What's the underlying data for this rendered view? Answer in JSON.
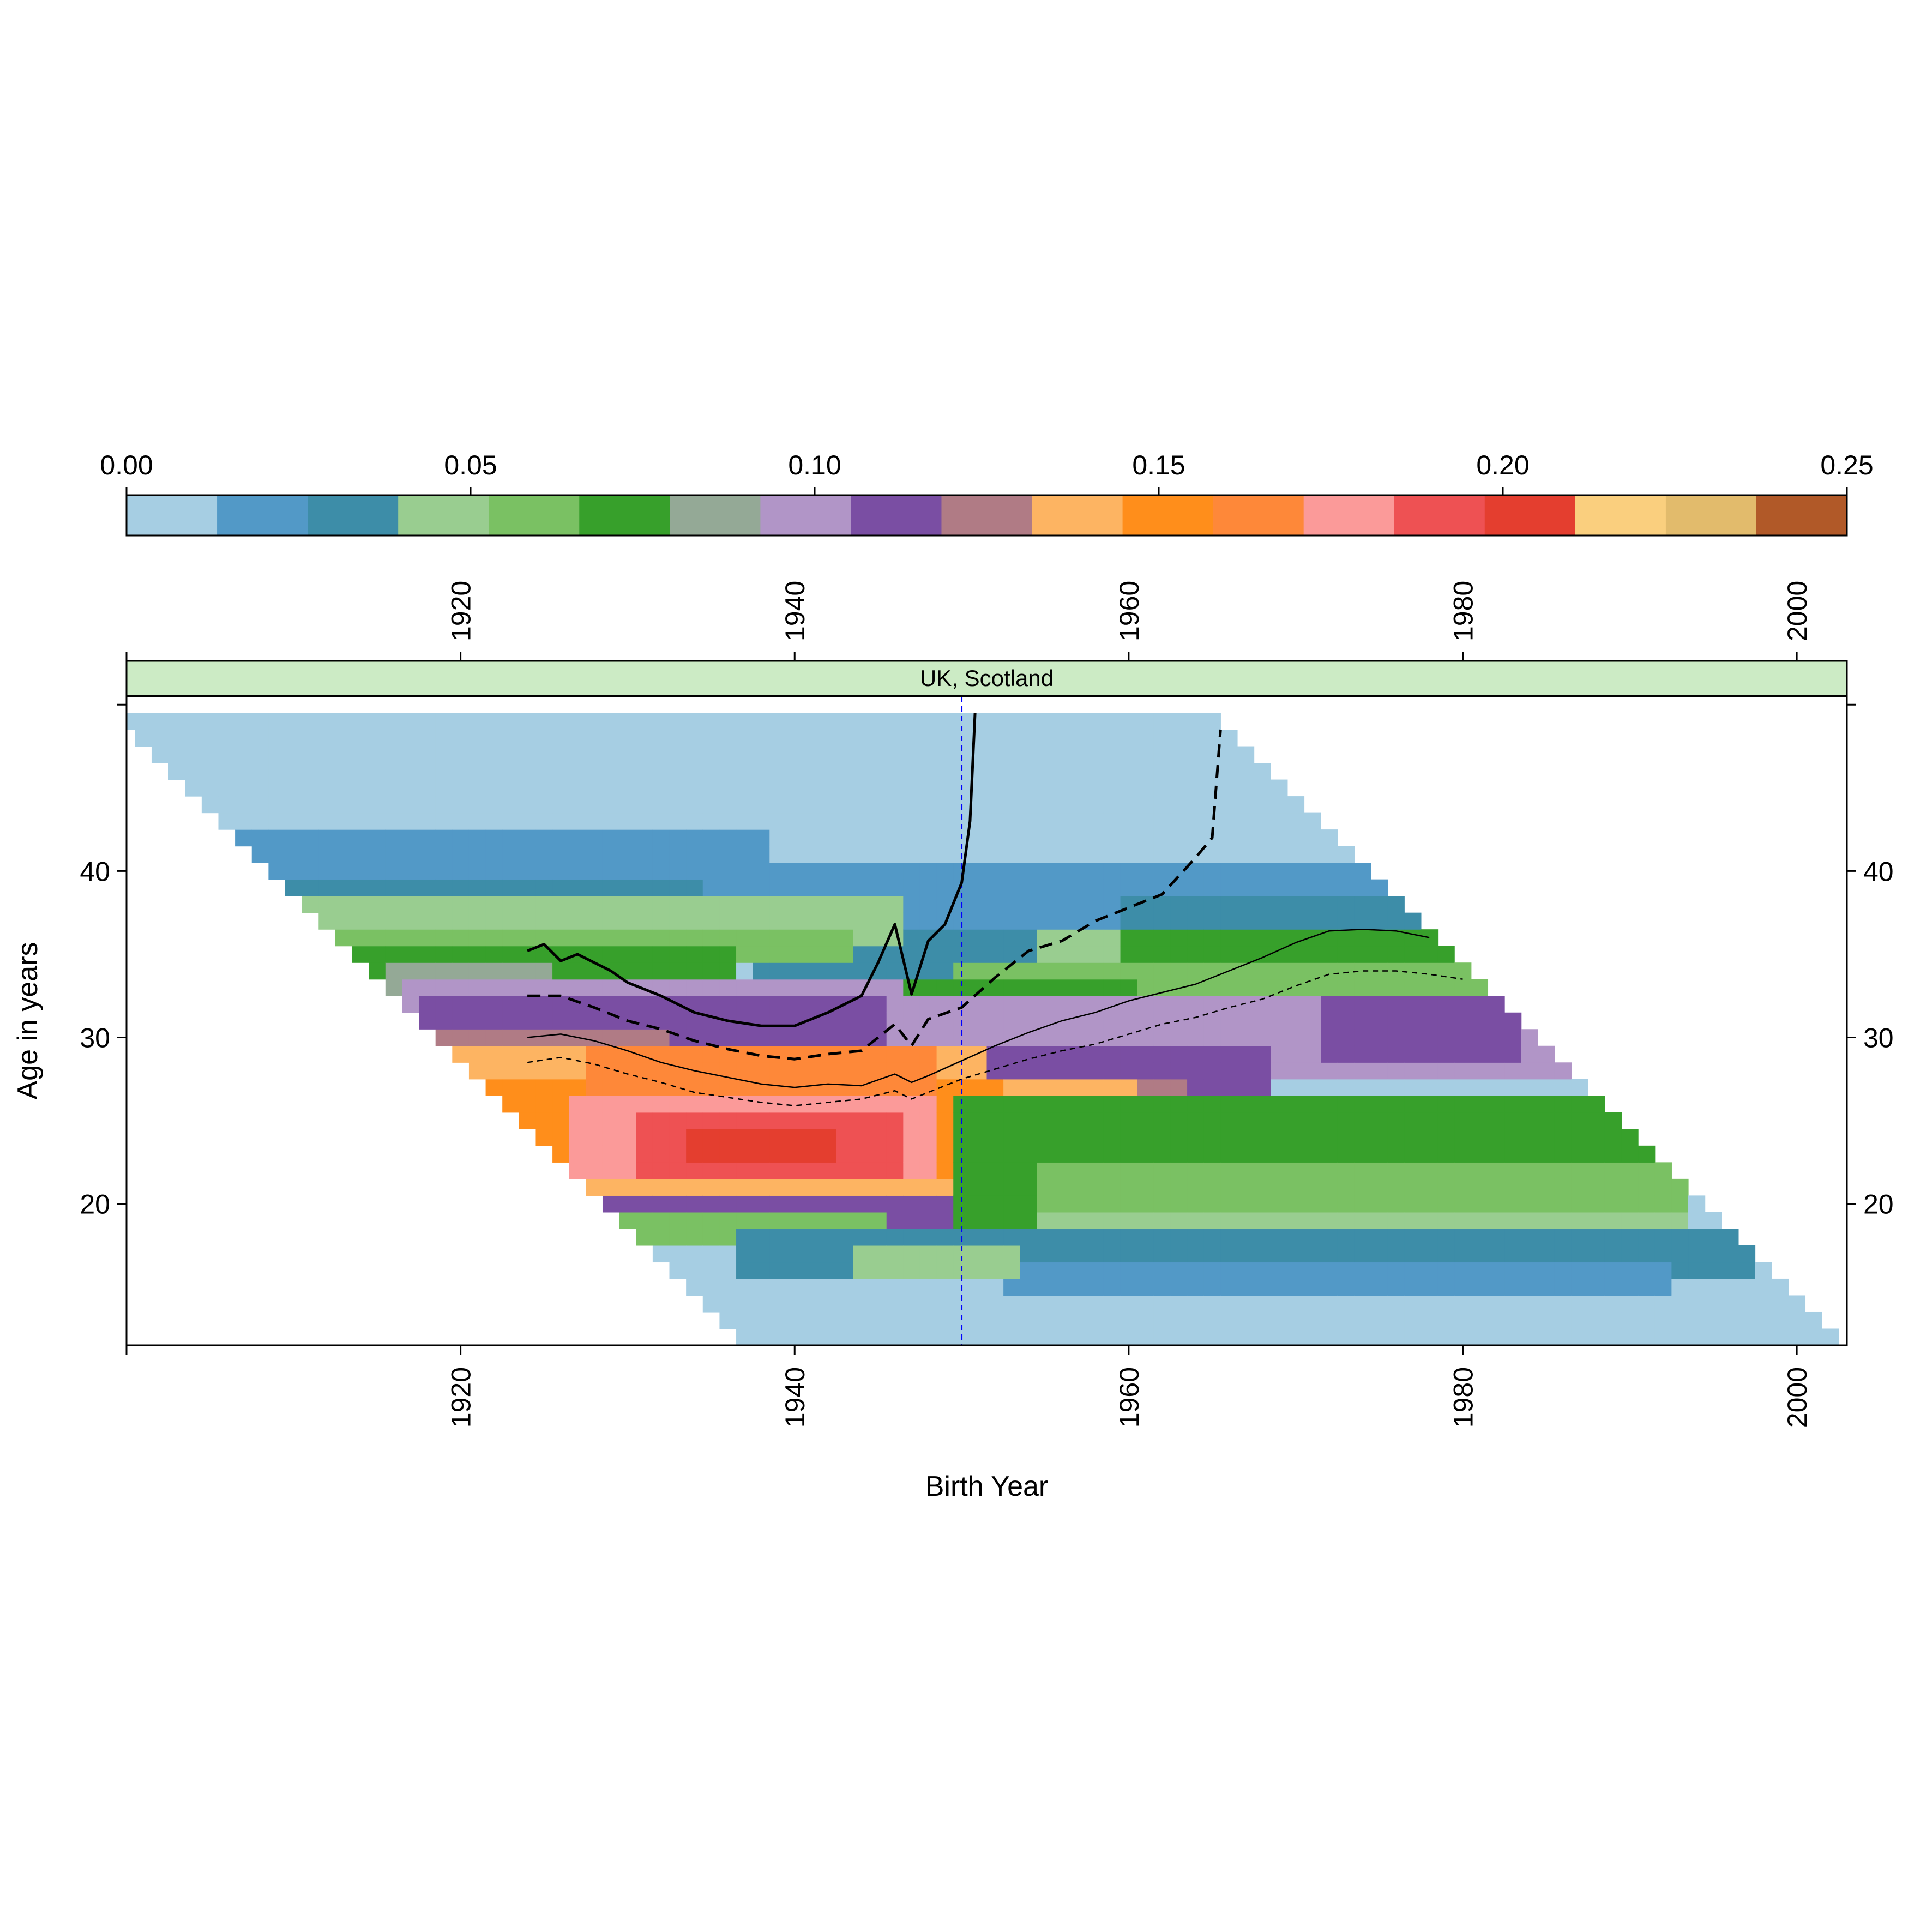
{
  "chart_data": {
    "type": "heatmap",
    "title": "",
    "panel_label": "UK, Scotland",
    "xlabel": "Birth Year",
    "ylabel": "Age in years",
    "xlim": [
      1900,
      2003
    ],
    "ylim": [
      11.5,
      50.5
    ],
    "x_ticks": [
      1920,
      1940,
      1960,
      1980,
      2000
    ],
    "y_ticks": [
      20,
      30,
      40
    ],
    "colorkey": {
      "ticks": [
        "0.00",
        "0.05",
        "0.10",
        "0.15",
        "0.20",
        "0.25"
      ],
      "range": [
        0,
        0.25
      ],
      "colors": [
        "#A6CEE3",
        "#5299C7",
        "#3D8DA8",
        "#99CD90",
        "#7AC163",
        "#37A02B",
        "#94A996",
        "#B195C7",
        "#7A4EA3",
        "#B07B85",
        "#FDB462",
        "#FF8E1B",
        "#FE8839",
        "#FB9A99",
        "#EE5153",
        "#E43E2F",
        "#FACF7E",
        "#E2BB6C",
        "#B15928"
      ]
    },
    "reference_line": {
      "x": 1950,
      "color": "#0000FF",
      "style": "dashed"
    },
    "cohort_age_range": {
      "min_age": 12,
      "max_age": 49,
      "first_birth_year": 1900,
      "last_birth_year": 2002
    },
    "heatmap_bands": [
      {
        "x_start": 1900,
        "x_end": 2002,
        "age_min": 12,
        "age_max": 49,
        "value": 0.005
      },
      {
        "x_start": 1907,
        "x_end": 1938,
        "age_min": 39,
        "age_max": 42,
        "value": 0.02
      },
      {
        "x_start": 1938,
        "x_end": 1980,
        "age_min": 37,
        "age_max": 40,
        "value": 0.02
      },
      {
        "x_start": 1964,
        "x_end": 1993,
        "age_min": 38,
        "age_max": 40,
        "value": 0.02
      },
      {
        "x_start": 1910,
        "x_end": 1934,
        "age_min": 38,
        "age_max": 39,
        "value": 0.03
      },
      {
        "x_start": 1938,
        "x_end": 1955,
        "age_min": 34,
        "age_max": 36,
        "value": 0.03
      },
      {
        "x_start": 1960,
        "x_end": 1992,
        "age_min": 37,
        "age_max": 38,
        "value": 0.03
      },
      {
        "x_start": 1910,
        "x_end": 1946,
        "age_min": 36,
        "age_max": 38,
        "value": 0.045
      },
      {
        "x_start": 1955,
        "x_end": 1996,
        "age_min": 34,
        "age_max": 36,
        "value": 0.045
      },
      {
        "x_start": 1912,
        "x_end": 1943,
        "age_min": 35,
        "age_max": 36,
        "value": 0.055
      },
      {
        "x_start": 1950,
        "x_end": 1990,
        "age_min": 32,
        "age_max": 34,
        "value": 0.055
      },
      {
        "x_start": 1914,
        "x_end": 1936,
        "age_min": 34,
        "age_max": 35,
        "value": 0.075
      },
      {
        "x_start": 1944,
        "x_end": 1960,
        "age_min": 32,
        "age_max": 33,
        "value": 0.075
      },
      {
        "x_start": 1960,
        "x_end": 1982,
        "age_min": 35,
        "age_max": 36,
        "value": 0.075
      },
      {
        "x_start": 1916,
        "x_end": 1925,
        "age_min": 33,
        "age_max": 34,
        "value": 0.085
      },
      {
        "x_start": 1917,
        "x_end": 1946,
        "age_min": 32,
        "age_max": 33,
        "value": 0.1
      },
      {
        "x_start": 1946,
        "x_end": 1996,
        "age_min": 28,
        "age_max": 32,
        "value": 0.1
      },
      {
        "x_start": 1918,
        "x_end": 1945,
        "age_min": 30,
        "age_max": 32,
        "value": 0.115
      },
      {
        "x_start": 1952,
        "x_end": 1968,
        "age_min": 25,
        "age_max": 29,
        "value": 0.115
      },
      {
        "x_start": 1972,
        "x_end": 1983,
        "age_min": 29,
        "age_max": 32,
        "value": 0.115
      },
      {
        "x_start": 1918,
        "x_end": 1932,
        "age_min": 29,
        "age_max": 30,
        "value": 0.125
      },
      {
        "x_start": 1953,
        "x_end": 1963,
        "age_min": 22,
        "age_max": 27,
        "value": 0.125
      },
      {
        "x_start": 1920,
        "x_end": 1951,
        "age_min": 28,
        "age_max": 29,
        "value": 0.14
      },
      {
        "x_start": 1946,
        "x_end": 1960,
        "age_min": 23,
        "age_max": 27,
        "value": 0.14
      },
      {
        "x_start": 1921,
        "x_end": 1952,
        "age_min": 21,
        "age_max": 27,
        "value": 0.155
      },
      {
        "x_start": 1928,
        "x_end": 1948,
        "age_min": 26,
        "age_max": 29,
        "value": 0.165
      },
      {
        "x_start": 1927,
        "x_end": 1948,
        "age_min": 22,
        "age_max": 26,
        "value": 0.175
      },
      {
        "x_start": 1931,
        "x_end": 1946,
        "age_min": 22,
        "age_max": 25,
        "value": 0.185
      },
      {
        "x_start": 1936,
        "x_end": 1946,
        "age_min": 22,
        "age_max": 25,
        "value": 0.195
      },
      {
        "x_start": 1934,
        "x_end": 1942,
        "age_min": 23,
        "age_max": 24,
        "value": 0.21
      },
      {
        "x_start": 1928,
        "x_end": 1952,
        "age_min": 20,
        "age_max": 21,
        "value": 0.14
      },
      {
        "x_start": 1926,
        "x_end": 1950,
        "age_min": 19,
        "age_max": 20,
        "value": 0.11
      },
      {
        "x_start": 1950,
        "x_end": 1993,
        "age_min": 18,
        "age_max": 26,
        "value": 0.075
      },
      {
        "x_start": 1955,
        "x_end": 1993,
        "age_min": 18,
        "age_max": 22,
        "value": 0.055
      },
      {
        "x_start": 1955,
        "x_end": 1993,
        "age_min": 18,
        "age_max": 19,
        "value": 0.045
      },
      {
        "x_start": 1930,
        "x_end": 1945,
        "age_min": 18,
        "age_max": 19,
        "value": 0.065
      },
      {
        "x_start": 1937,
        "x_end": 1997,
        "age_min": 16,
        "age_max": 18,
        "value": 0.03
      },
      {
        "x_start": 1953,
        "x_end": 1992,
        "age_min": 15,
        "age_max": 16,
        "value": 0.02
      },
      {
        "x_start": 1944,
        "x_end": 1953,
        "age_min": 16,
        "age_max": 17,
        "value": 0.045
      }
    ],
    "series": [
      {
        "style": "solid-thick",
        "x": [
          1924,
          1925,
          1926,
          1927,
          1928,
          1929,
          1930,
          1932,
          1934,
          1936,
          1938,
          1940,
          1942,
          1944,
          1945,
          1946,
          1947,
          1948,
          1949,
          1950,
          1950.5,
          1950.8
        ],
        "y": [
          35.2,
          35.6,
          34.6,
          35.0,
          34.5,
          34.0,
          33.3,
          32.5,
          31.5,
          31.0,
          30.7,
          30.7,
          31.5,
          32.5,
          34.5,
          36.8,
          32.6,
          35.8,
          36.8,
          39.3,
          43.0,
          49.5
        ]
      },
      {
        "style": "dashed-thick",
        "x": [
          1924,
          1926,
          1928,
          1930,
          1932,
          1934,
          1936,
          1938,
          1940,
          1942,
          1944,
          1946,
          1947,
          1948,
          1950,
          1952,
          1954,
          1956,
          1958,
          1960,
          1962,
          1964,
          1965,
          1965.5
        ],
        "y": [
          32.5,
          32.5,
          31.8,
          31.0,
          30.5,
          29.8,
          29.3,
          28.9,
          28.7,
          29.0,
          29.2,
          30.8,
          29.5,
          31.1,
          31.8,
          33.6,
          35.2,
          35.8,
          37.0,
          37.8,
          38.6,
          40.8,
          42.0,
          48.5
        ]
      },
      {
        "style": "solid-thin",
        "x": [
          1924,
          1926,
          1928,
          1930,
          1932,
          1934,
          1936,
          1938,
          1940,
          1942,
          1944,
          1946,
          1947,
          1948,
          1950,
          1952,
          1954,
          1956,
          1958,
          1960,
          1962,
          1964,
          1966,
          1968,
          1970,
          1972,
          1974,
          1976,
          1978
        ],
        "y": [
          30.0,
          30.2,
          29.8,
          29.2,
          28.5,
          28.0,
          27.6,
          27.2,
          27.0,
          27.2,
          27.1,
          27.8,
          27.3,
          27.7,
          28.6,
          29.5,
          30.3,
          31.0,
          31.5,
          32.2,
          32.7,
          33.2,
          34.0,
          34.8,
          35.7,
          36.4,
          36.5,
          36.4,
          36.0
        ]
      },
      {
        "style": "dashed-thin",
        "x": [
          1924,
          1926,
          1928,
          1930,
          1932,
          1934,
          1936,
          1938,
          1940,
          1942,
          1944,
          1946,
          1947,
          1948,
          1950,
          1952,
          1954,
          1956,
          1958,
          1960,
          1962,
          1964,
          1966,
          1968,
          1970,
          1972,
          1974,
          1976,
          1978,
          1980
        ],
        "y": [
          28.5,
          28.8,
          28.4,
          27.8,
          27.3,
          26.7,
          26.4,
          26.1,
          25.9,
          26.1,
          26.3,
          26.8,
          26.3,
          26.7,
          27.5,
          28.1,
          28.7,
          29.2,
          29.6,
          30.2,
          30.8,
          31.2,
          31.8,
          32.3,
          33.1,
          33.8,
          34.0,
          34.0,
          33.8,
          33.5
        ]
      }
    ]
  }
}
